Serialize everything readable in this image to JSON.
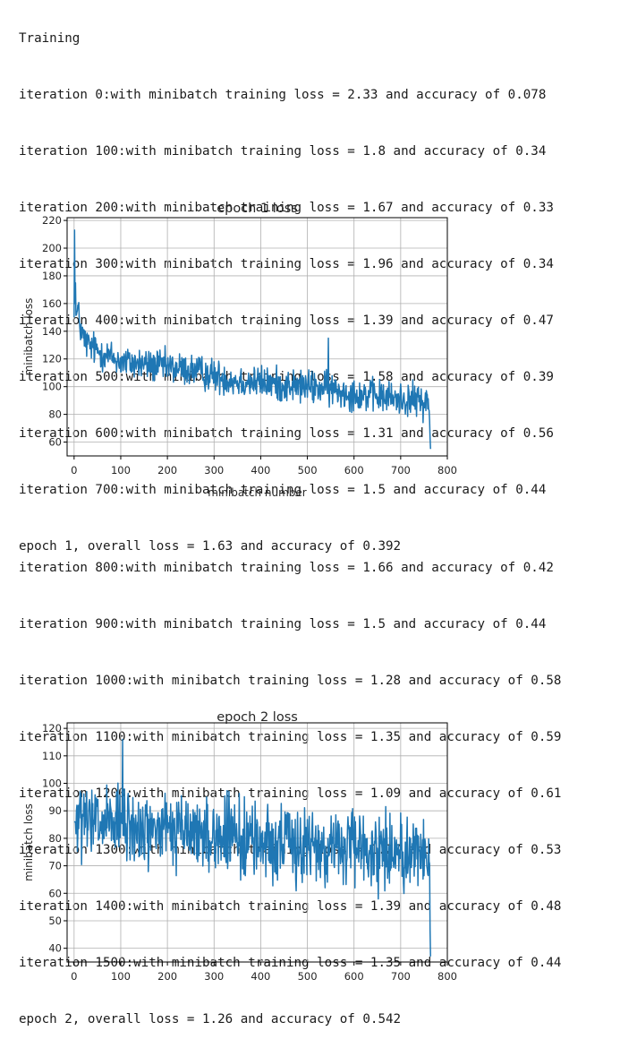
{
  "section_header": "Training",
  "log_block_1": [
    "iteration 0:with minibatch training loss = 2.33 and accuracy of 0.078",
    "iteration 100:with minibatch training loss = 1.8 and accuracy of 0.34",
    "iteration 200:with minibatch training loss = 1.67 and accuracy of 0.33",
    "iteration 300:with minibatch training loss = 1.96 and accuracy of 0.34",
    "iteration 400:with minibatch training loss = 1.39 and accuracy of 0.47",
    "iteration 500:with minibatch training loss = 1.58 and accuracy of 0.39",
    "iteration 600:with minibatch training loss = 1.31 and accuracy of 0.56",
    "iteration 700:with minibatch training loss = 1.5 and accuracy of 0.44",
    "epoch 1, overall loss = 1.63 and accuracy of 0.392"
  ],
  "log_block_2": [
    "iteration 800:with minibatch training loss = 1.66 and accuracy of 0.42",
    "iteration 900:with minibatch training loss = 1.5 and accuracy of 0.44",
    "iteration 1000:with minibatch training loss = 1.28 and accuracy of 0.58",
    "iteration 1100:with minibatch training loss = 1.35 and accuracy of 0.59",
    "iteration 1200:with minibatch training loss = 1.09 and accuracy of 0.61",
    "iteration 1300:with minibatch training loss = 1.27 and accuracy of 0.53",
    "iteration 1400:with minibatch training loss = 1.39 and accuracy of 0.48",
    "iteration 1500:with minibatch training loss = 1.35 and accuracy of 0.44",
    "epoch 2, overall loss = 1.26 and accuracy of 0.542"
  ],
  "chart_data": [
    {
      "type": "line",
      "title": "epoch 1 loss",
      "xlabel": "minibatch number",
      "ylabel": "minibatch loss",
      "xlim": [
        -15,
        800
      ],
      "ylim": [
        50,
        222
      ],
      "xticks": [
        0,
        100,
        200,
        300,
        400,
        500,
        600,
        700,
        800
      ],
      "yticks": [
        60,
        80,
        100,
        120,
        140,
        160,
        180,
        200,
        220
      ],
      "grid": true,
      "line_color": "#1f77b4",
      "series": [
        {
          "name": "minibatch loss",
          "x": [
            0,
            1,
            2,
            3,
            5,
            8,
            12,
            20,
            30,
            50,
            75,
            100,
            150,
            200,
            250,
            300,
            350,
            400,
            450,
            500,
            550,
            600,
            650,
            700,
            740,
            760,
            764
          ],
          "y": [
            150,
            213,
            160,
            175,
            150,
            156,
            145,
            135,
            130,
            126,
            122,
            118,
            116,
            114,
            112,
            108,
            104,
            103,
            101,
            100,
            98,
            95,
            93,
            91,
            90,
            88,
            55
          ],
          "noise_amplitude": 9,
          "spikes": [
            {
              "x": 545,
              "y": 135
            }
          ]
        }
      ]
    },
    {
      "type": "line",
      "title": "epoch 2 loss",
      "xlabel": "",
      "ylabel": "minibatch loss",
      "xlim": [
        -15,
        800
      ],
      "ylim": [
        35,
        122
      ],
      "xticks": [
        0,
        100,
        200,
        300,
        400,
        500,
        600,
        700,
        800
      ],
      "yticks": [
        40,
        50,
        60,
        70,
        80,
        90,
        100,
        110,
        120
      ],
      "grid": true,
      "line_color": "#1f77b4",
      "series": [
        {
          "name": "minibatch loss",
          "x": [
            0,
            50,
            100,
            150,
            200,
            250,
            300,
            350,
            400,
            450,
            500,
            550,
            600,
            650,
            700,
            740,
            760,
            764
          ],
          "y": [
            86,
            85,
            84,
            83,
            83,
            82,
            81,
            80,
            79,
            78,
            77,
            77,
            76,
            76,
            75,
            75,
            76,
            37
          ],
          "noise_amplitude": 10,
          "spikes": [
            {
              "x": 104,
              "y": 116
            }
          ]
        }
      ]
    }
  ]
}
